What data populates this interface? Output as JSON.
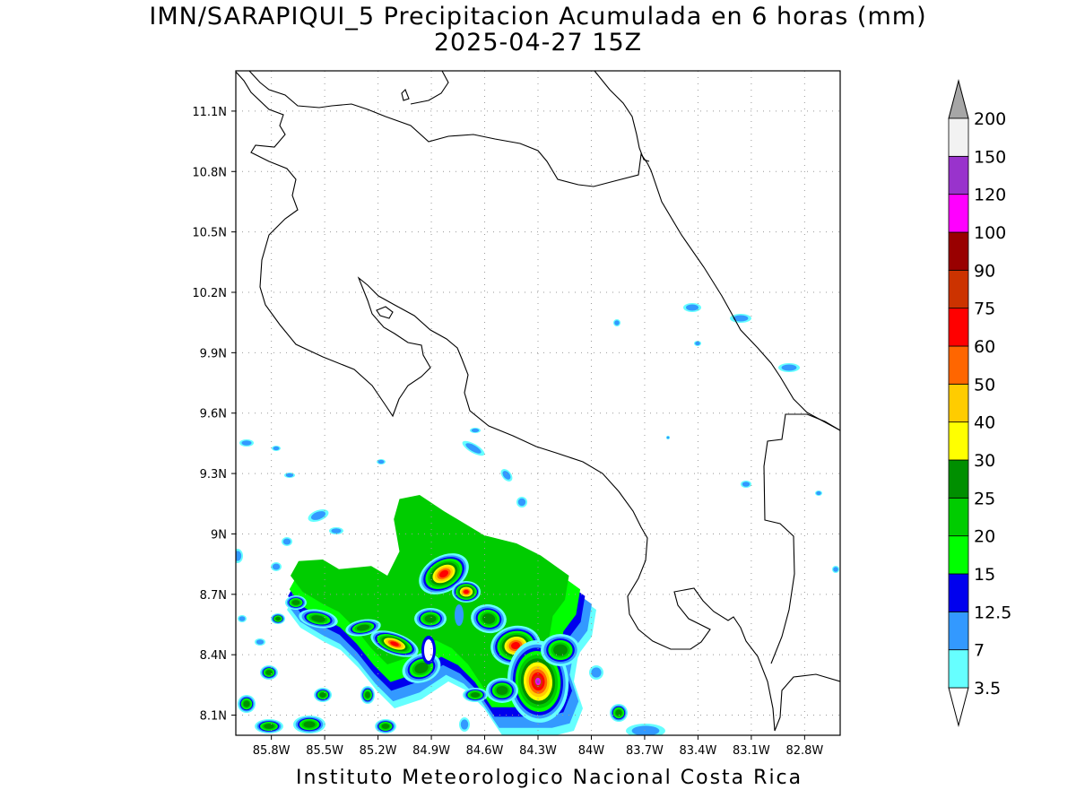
{
  "title": "IMN/SARAPIQUI_5 Precipitacion Acumulada en 6 horas (mm)",
  "subtitle": "2025-04-27 15Z",
  "credit": "Instituto Meteorologico Nacional Costa Rica",
  "map": {
    "lon_range": [
      -86.0,
      -82.6
    ],
    "lat_range": [
      8.0,
      11.3
    ],
    "lon_ticks": [
      "85.8W",
      "85.5W",
      "85.2W",
      "84.9W",
      "84.6W",
      "84.3W",
      "84W",
      "83.7W",
      "83.4W",
      "83.1W",
      "82.8W"
    ],
    "lat_ticks": [
      "8.1N",
      "8.4N",
      "8.7N",
      "9N",
      "9.3N",
      "9.6N",
      "9.9N",
      "10.2N",
      "10.5N",
      "10.8N",
      "11.1N"
    ],
    "grid": "dotted"
  },
  "legend": {
    "levels": [
      "3.5",
      "7",
      "12.5",
      "15",
      "20",
      "25",
      "30",
      "40",
      "50",
      "60",
      "75",
      "90",
      "100",
      "120",
      "150",
      "200"
    ],
    "colors": {
      "lt3_5": "#ffffff",
      "c3_5_7": "#66ffff",
      "c7_12_5": "#3399ff",
      "c12_5_15": "#0000ee",
      "c15_20": "#00ff00",
      "c20_25": "#00cc00",
      "c25_30": "#008f00",
      "c30_40": "#ffff00",
      "c40_50": "#ffcc00",
      "c50_60": "#ff6600",
      "c60_75": "#ff0000",
      "c75_90": "#cc3300",
      "c90_100": "#990000",
      "c100_120": "#ff00ff",
      "c120_150": "#9933cc",
      "c150_200": "#f2f2f2",
      "gt200": "#a6a6a6"
    }
  }
}
